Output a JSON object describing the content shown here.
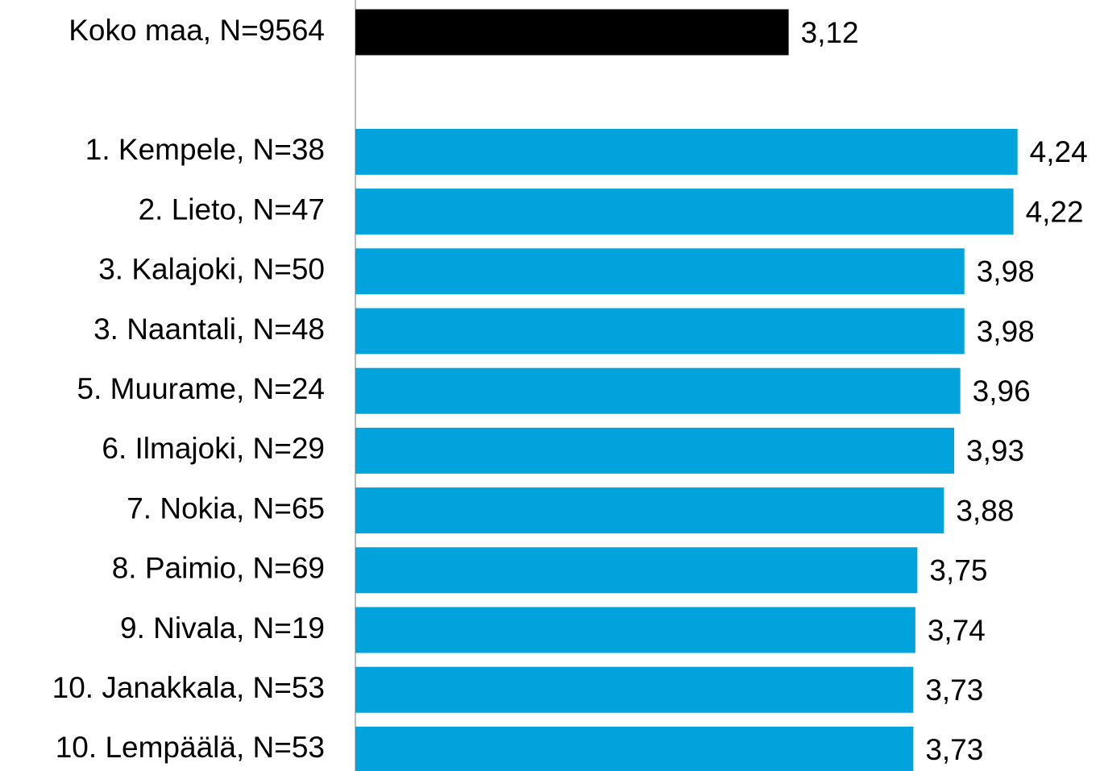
{
  "chart_data": {
    "type": "hbar",
    "categories": [
      "Koko maa, N=9564",
      null,
      "1. Kempele, N=38",
      "2. Lieto, N=47",
      "3. Kalajoki, N=50",
      "3. Naantali, N=48",
      "5. Muurame, N=24",
      "6. Ilmajoki, N=29",
      "7. Nokia, N=65",
      "8. Paimio, N=69",
      "9. Nivala, N=19",
      "10. Janakkala, N=53",
      "10. Lempäälä, N=53"
    ],
    "values": [
      3.12,
      null,
      4.24,
      4.22,
      3.98,
      3.98,
      3.96,
      3.93,
      3.88,
      3.75,
      3.74,
      3.73,
      3.73
    ],
    "value_labels": [
      "3,12",
      null,
      "4,24",
      "4,22",
      "3,98",
      "3,98",
      "3,96",
      "3,93",
      "3,88",
      "3,75",
      "3,74",
      "3,73",
      "3,73"
    ],
    "colors": [
      "#000000",
      null,
      "#00a3dc",
      "#00a3dc",
      "#00a3dc",
      "#00a3dc",
      "#00a3dc",
      "#00a3dc",
      "#00a3dc",
      "#00a3dc",
      "#00a3dc",
      "#00a3dc",
      "#00a3dc"
    ],
    "xlim": [
      1,
      5
    ]
  }
}
